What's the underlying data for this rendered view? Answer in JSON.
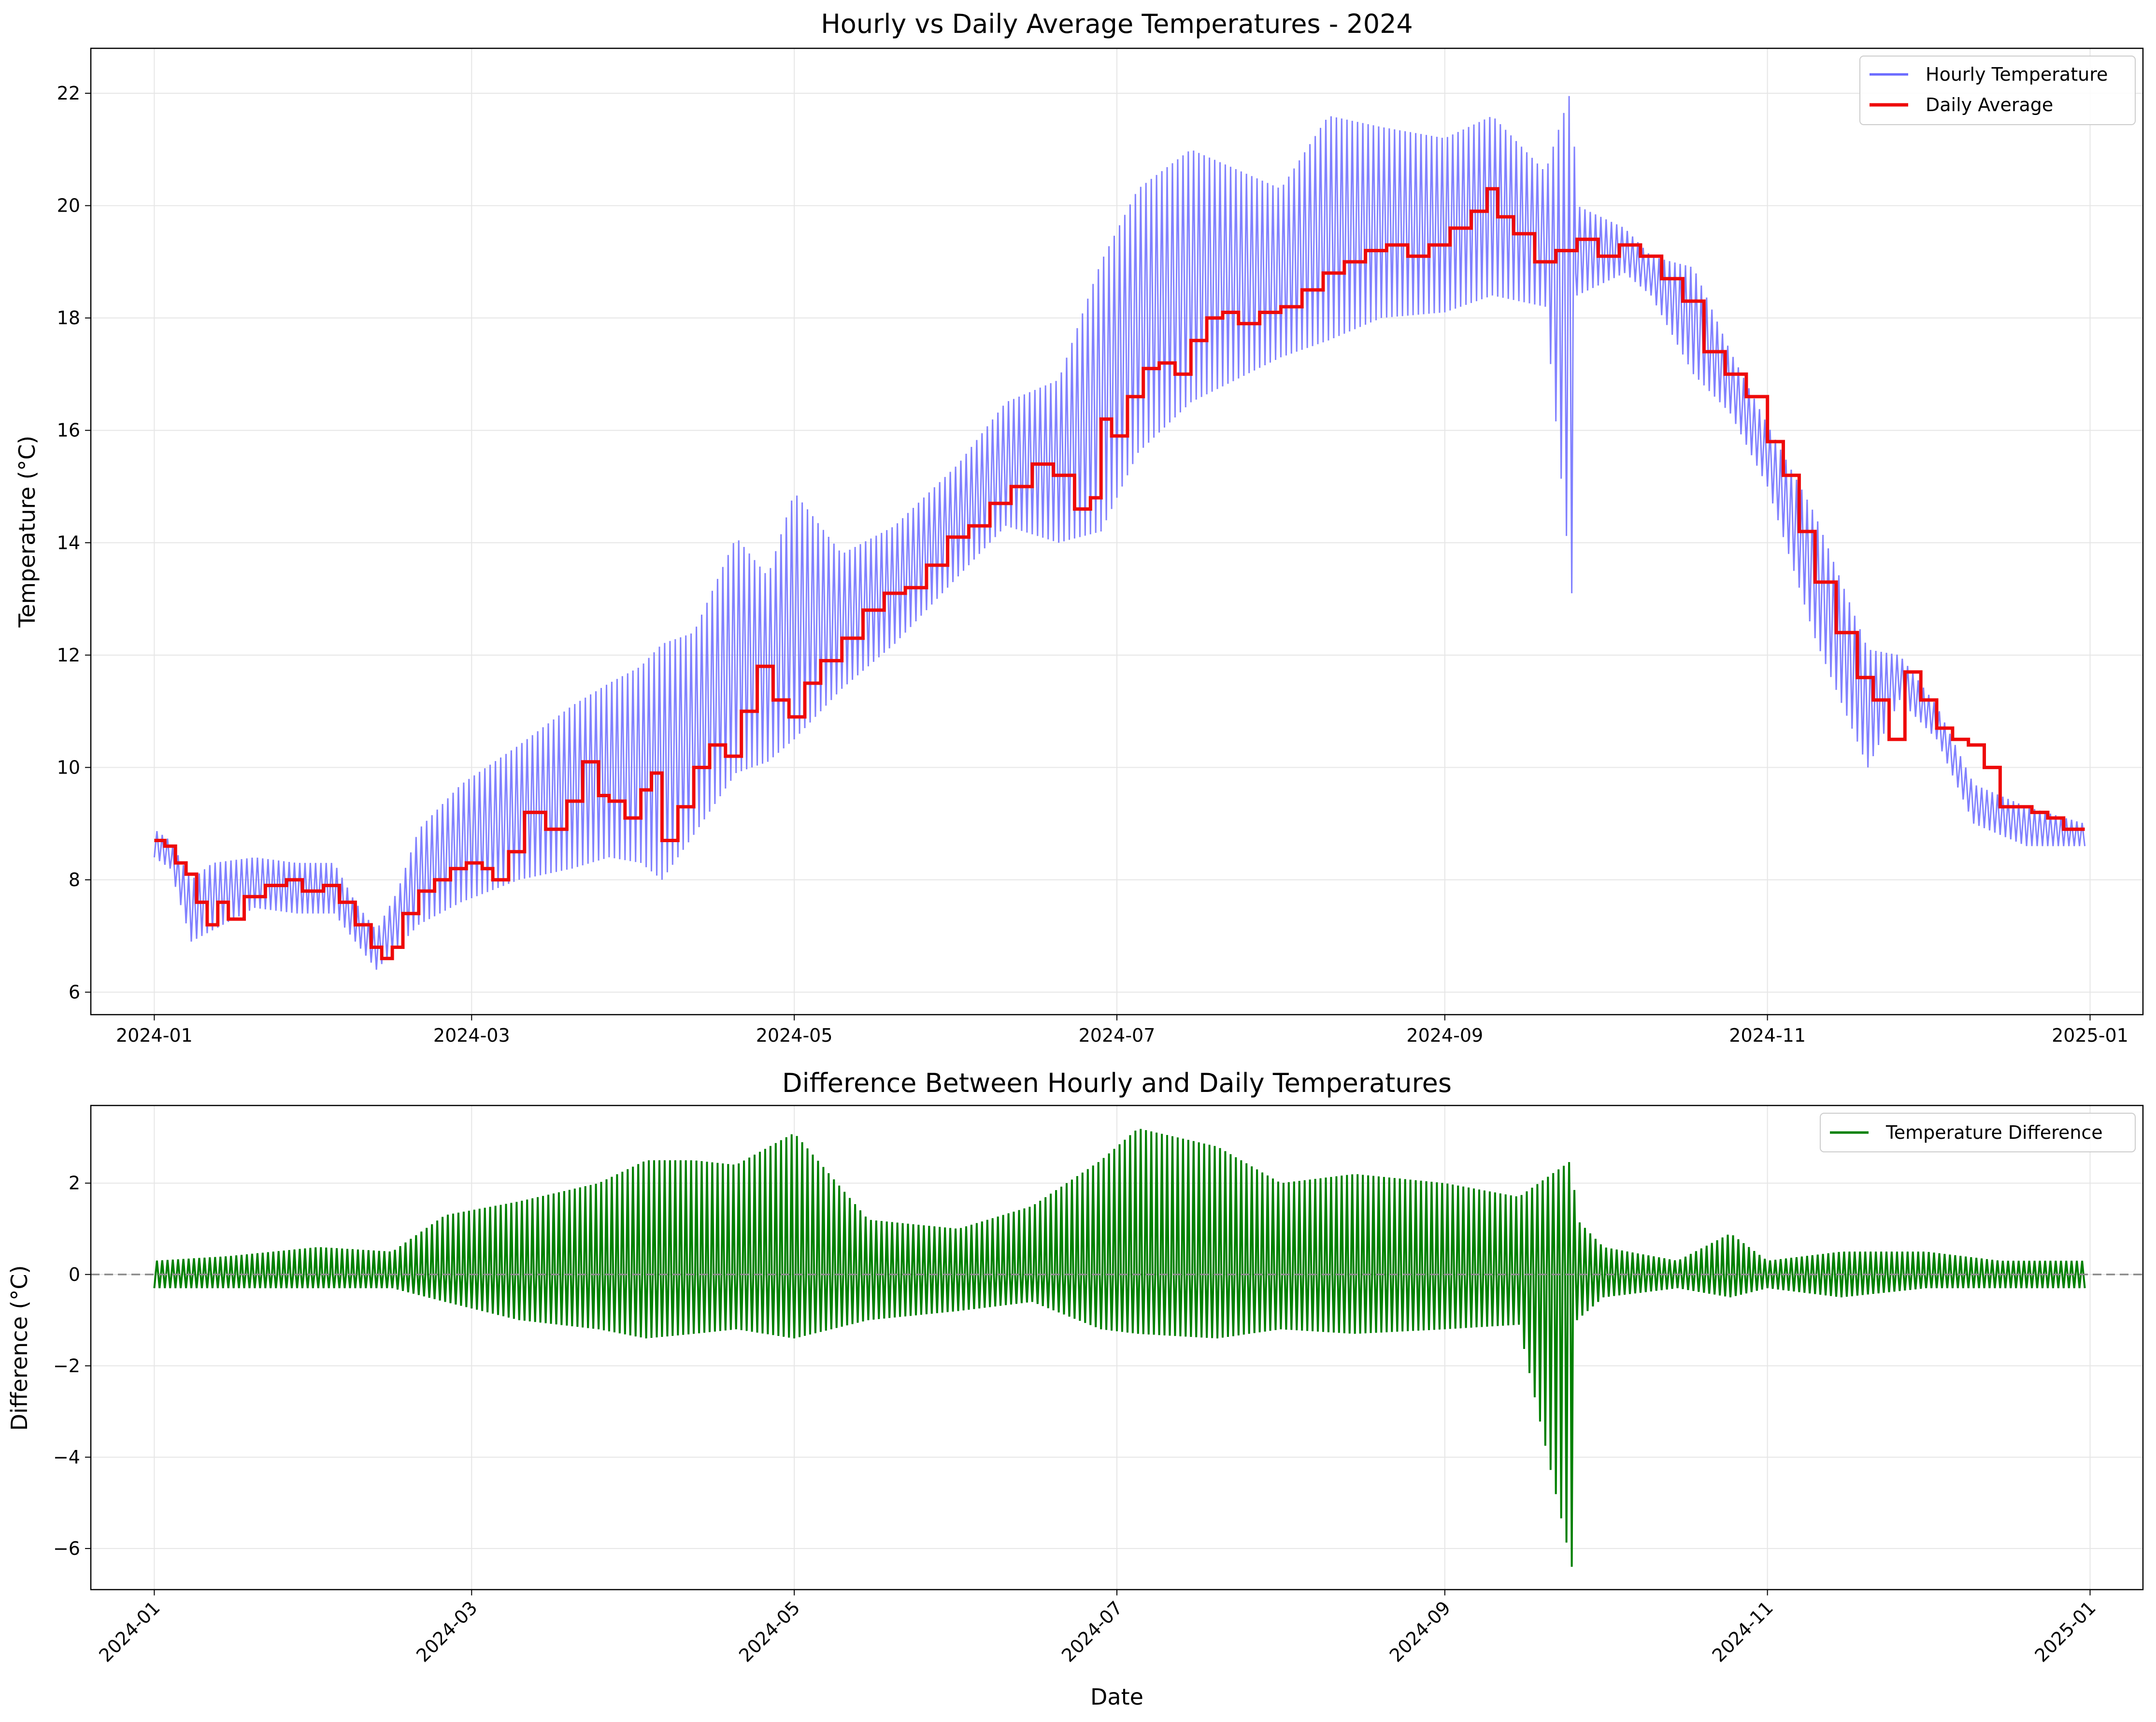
{
  "colors": {
    "hourly": "#6b6bff",
    "daily": "#ee0a0a",
    "difference": "#008000",
    "zero_line": "#8c8c8c",
    "grid": "#e6e6e6"
  },
  "chart_data": [
    {
      "type": "line",
      "title": "Hourly vs Daily Average Temperatures - 2024",
      "xlabel": "",
      "ylabel": "Temperature (°C)",
      "x_tick_labels": [
        "2024-01",
        "2024-03",
        "2024-05",
        "2024-07",
        "2024-09",
        "2024-11",
        "2025-01"
      ],
      "y_ticks": [
        6,
        8,
        10,
        12,
        14,
        16,
        18,
        20,
        22
      ],
      "xlim": [
        "2023-12-20",
        "2025-01-11"
      ],
      "ylim": [
        5.6,
        22.8
      ],
      "grid": true,
      "legend": "top-right",
      "series": [
        {
          "name": "Hourly Temperature",
          "style": "oscillating hourly trace around the daily average",
          "x": [
            "2024-01-01",
            "2024-01-04",
            "2024-01-08",
            "2024-01-12",
            "2024-01-20",
            "2024-01-28",
            "2024-02-04",
            "2024-02-08",
            "2024-02-12",
            "2024-02-16",
            "2024-02-20",
            "2024-02-28",
            "2024-03-10",
            "2024-03-20",
            "2024-03-27",
            "2024-04-02",
            "2024-04-06",
            "2024-04-12",
            "2024-04-20",
            "2024-04-26",
            "2024-05-01",
            "2024-05-10",
            "2024-05-20",
            "2024-06-01",
            "2024-06-10",
            "2024-06-20",
            "2024-06-28",
            "2024-07-05",
            "2024-07-15",
            "2024-08-01",
            "2024-08-10",
            "2024-08-20",
            "2024-09-01",
            "2024-09-10",
            "2024-09-20",
            "2024-09-25",
            "2024-09-26",
            "2024-10-05",
            "2024-10-10",
            "2024-10-18",
            "2024-10-25",
            "2024-11-01",
            "2024-11-10",
            "2024-11-20",
            "2024-11-26",
            "2024-12-03",
            "2024-12-10",
            "2024-12-20",
            "2024-12-31"
          ],
          "low": [
            8.4,
            8.2,
            6.9,
            7.1,
            7.5,
            7.4,
            7.4,
            6.9,
            6.4,
            6.8,
            7.2,
            7.6,
            8.0,
            8.2,
            8.4,
            8.3,
            8.0,
            8.8,
            9.9,
            10.1,
            10.5,
            11.4,
            12.2,
            13.4,
            14.3,
            14.0,
            14.2,
            15.6,
            16.5,
            17.3,
            17.6,
            18.0,
            18.1,
            18.4,
            18.2,
            13.1,
            18.4,
            18.8,
            18.4,
            17.0,
            16.3,
            15.0,
            12.3,
            10.0,
            11.2,
            10.5,
            9.0,
            8.6,
            8.6
          ],
          "high": [
            8.9,
            8.7,
            8.0,
            8.3,
            8.4,
            8.3,
            8.3,
            7.6,
            7.1,
            7.8,
            8.9,
            9.7,
            10.4,
            11.1,
            11.5,
            11.8,
            12.2,
            12.4,
            14.1,
            13.4,
            14.9,
            13.8,
            14.3,
            15.4,
            16.5,
            16.9,
            19.0,
            20.3,
            21.0,
            20.3,
            21.6,
            21.4,
            21.2,
            21.6,
            20.6,
            22.1,
            20.0,
            19.6,
            19.1,
            18.9,
            17.4,
            16.1,
            14.5,
            12.1,
            12.0,
            11.1,
            9.7,
            9.3,
            9.0
          ]
        },
        {
          "name": "Daily Average",
          "x": [
            "2024-01-01",
            "2024-01-03",
            "2024-01-05",
            "2024-01-07",
            "2024-01-09",
            "2024-01-11",
            "2024-01-13",
            "2024-01-15",
            "2024-01-18",
            "2024-01-22",
            "2024-01-26",
            "2024-01-29",
            "2024-02-02",
            "2024-02-05",
            "2024-02-08",
            "2024-02-11",
            "2024-02-13",
            "2024-02-15",
            "2024-02-17",
            "2024-02-20",
            "2024-02-23",
            "2024-02-26",
            "2024-02-29",
            "2024-03-03",
            "2024-03-05",
            "2024-03-08",
            "2024-03-11",
            "2024-03-15",
            "2024-03-19",
            "2024-03-22",
            "2024-03-25",
            "2024-03-27",
            "2024-03-30",
            "2024-04-02",
            "2024-04-04",
            "2024-04-06",
            "2024-04-09",
            "2024-04-12",
            "2024-04-15",
            "2024-04-18",
            "2024-04-21",
            "2024-04-24",
            "2024-04-27",
            "2024-04-30",
            "2024-05-03",
            "2024-05-06",
            "2024-05-10",
            "2024-05-14",
            "2024-05-18",
            "2024-05-22",
            "2024-05-26",
            "2024-05-30",
            "2024-06-03",
            "2024-06-07",
            "2024-06-11",
            "2024-06-15",
            "2024-06-19",
            "2024-06-23",
            "2024-06-26",
            "2024-06-28",
            "2024-06-30",
            "2024-07-03",
            "2024-07-06",
            "2024-07-09",
            "2024-07-12",
            "2024-07-15",
            "2024-07-18",
            "2024-07-21",
            "2024-07-24",
            "2024-07-28",
            "2024-08-01",
            "2024-08-05",
            "2024-08-09",
            "2024-08-13",
            "2024-08-17",
            "2024-08-21",
            "2024-08-25",
            "2024-08-29",
            "2024-09-02",
            "2024-09-06",
            "2024-09-09",
            "2024-09-11",
            "2024-09-14",
            "2024-09-18",
            "2024-09-22",
            "2024-09-26",
            "2024-09-30",
            "2024-10-04",
            "2024-10-08",
            "2024-10-12",
            "2024-10-16",
            "2024-10-20",
            "2024-10-24",
            "2024-10-28",
            "2024-11-01",
            "2024-11-04",
            "2024-11-07",
            "2024-11-10",
            "2024-11-14",
            "2024-11-18",
            "2024-11-21",
            "2024-11-24",
            "2024-11-27",
            "2024-11-30",
            "2024-12-03",
            "2024-12-06",
            "2024-12-09",
            "2024-12-12",
            "2024-12-15",
            "2024-12-18",
            "2024-12-21",
            "2024-12-24",
            "2024-12-27",
            "2024-12-31"
          ],
          "values": [
            8.7,
            8.6,
            8.3,
            8.1,
            7.6,
            7.2,
            7.6,
            7.3,
            7.7,
            7.9,
            8.0,
            7.8,
            7.9,
            7.6,
            7.2,
            6.8,
            6.6,
            6.8,
            7.4,
            7.8,
            8.0,
            8.2,
            8.3,
            8.2,
            8.0,
            8.5,
            9.2,
            8.9,
            9.4,
            10.1,
            9.5,
            9.4,
            9.1,
            9.6,
            9.9,
            8.7,
            9.3,
            10.0,
            10.4,
            10.2,
            11.0,
            11.8,
            11.2,
            10.9,
            11.5,
            11.9,
            12.3,
            12.8,
            13.1,
            13.2,
            13.6,
            14.1,
            14.3,
            14.7,
            15.0,
            15.4,
            15.2,
            14.6,
            14.8,
            16.2,
            15.9,
            16.6,
            17.1,
            17.2,
            17.0,
            17.6,
            18.0,
            18.1,
            17.9,
            18.1,
            18.2,
            18.5,
            18.8,
            19.0,
            19.2,
            19.3,
            19.1,
            19.3,
            19.6,
            19.9,
            20.3,
            19.8,
            19.5,
            19.0,
            19.2,
            19.4,
            19.1,
            19.3,
            19.1,
            18.7,
            18.3,
            17.4,
            17.0,
            16.6,
            15.8,
            15.2,
            14.2,
            13.3,
            12.4,
            11.6,
            11.2,
            10.5,
            11.7,
            11.2,
            10.7,
            10.5,
            10.4,
            10.0,
            9.3,
            9.3,
            9.2,
            9.1,
            8.9,
            8.9
          ]
        }
      ]
    },
    {
      "type": "line",
      "title": "Difference Between Hourly and Daily Temperatures",
      "xlabel": "Date",
      "ylabel": "Difference (°C)",
      "x_tick_labels": [
        "2024-01",
        "2024-03",
        "2024-05",
        "2024-07",
        "2024-09",
        "2024-11",
        "2025-01"
      ],
      "y_ticks": [
        -6,
        -4,
        -2,
        0,
        2
      ],
      "xlim": [
        "2023-12-20",
        "2025-01-11"
      ],
      "ylim": [
        -6.9,
        3.7
      ],
      "grid": true,
      "legend": "top-right",
      "reference_line": 0,
      "series": [
        {
          "name": "Temperature Difference",
          "style": "oscillating hourly trace around zero",
          "x": [
            "2024-01-01",
            "2024-01-15",
            "2024-02-01",
            "2024-02-15",
            "2024-02-25",
            "2024-03-10",
            "2024-03-25",
            "2024-04-03",
            "2024-04-12",
            "2024-04-20",
            "2024-05-01",
            "2024-05-15",
            "2024-06-01",
            "2024-06-15",
            "2024-06-28",
            "2024-07-05",
            "2024-07-20",
            "2024-08-01",
            "2024-08-15",
            "2024-09-01",
            "2024-09-15",
            "2024-09-25",
            "2024-09-26",
            "2024-10-01",
            "2024-10-15",
            "2024-10-25",
            "2024-11-01",
            "2024-11-15",
            "2024-12-01",
            "2024-12-15",
            "2024-12-31"
          ],
          "low": [
            -0.3,
            -0.3,
            -0.3,
            -0.3,
            -0.6,
            -1.0,
            -1.2,
            -1.4,
            -1.3,
            -1.2,
            -1.4,
            -1.0,
            -0.8,
            -0.6,
            -1.2,
            -1.3,
            -1.4,
            -1.2,
            -1.3,
            -1.2,
            -1.1,
            -6.4,
            -1.0,
            -0.5,
            -0.3,
            -0.5,
            -0.3,
            -0.5,
            -0.3,
            -0.3,
            -0.3
          ],
          "high": [
            0.3,
            0.4,
            0.6,
            0.5,
            1.3,
            1.6,
            2.0,
            2.5,
            2.5,
            2.4,
            3.1,
            1.2,
            1.0,
            1.5,
            2.5,
            3.2,
            2.8,
            2.0,
            2.2,
            2.0,
            1.7,
            2.5,
            1.2,
            0.6,
            0.3,
            0.9,
            0.3,
            0.5,
            0.5,
            0.3,
            0.3
          ]
        }
      ]
    }
  ]
}
